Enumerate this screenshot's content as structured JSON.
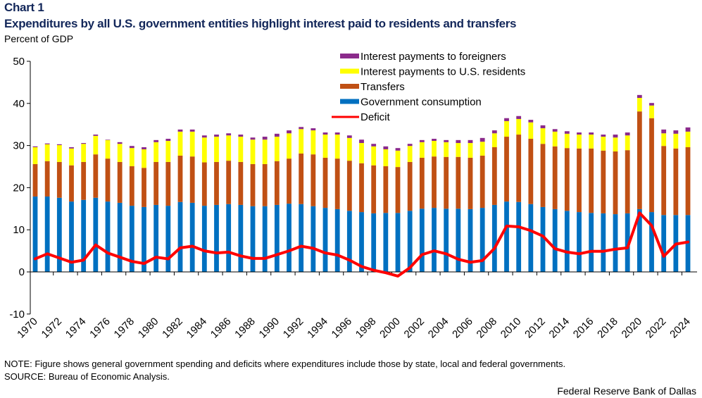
{
  "header": {
    "chart_label": "Chart 1",
    "title": "Expenditures by all U.S. government entities highlight interest paid to residents and transfers",
    "unit": "Percent of GDP"
  },
  "footer": {
    "note": "NOTE: Figure shows general government spending and deficits where expenditures include those by state, local and federal governments.",
    "source": "SOURCE: Bureau of Economic Analysis.",
    "credit": "Federal Reserve Bank of Dallas"
  },
  "colors": {
    "foreigners": "#8b2a8b",
    "residents": "#ffff00",
    "transfers": "#c05014",
    "consumption": "#0070c0",
    "deficit": "#ff0000"
  },
  "chart_data": {
    "type": "bar",
    "stacked": true,
    "title": "Expenditures by all U.S. government entities highlight interest paid to residents and transfers",
    "xlabel": "",
    "ylabel": "Percent of GDP",
    "ylim": [
      -10,
      50
    ],
    "yticks": [
      -10,
      0,
      10,
      20,
      30,
      40,
      50
    ],
    "grid": false,
    "legend_position": "top-center",
    "x": [
      1970,
      1971,
      1972,
      1973,
      1974,
      1975,
      1976,
      1977,
      1978,
      1979,
      1980,
      1981,
      1982,
      1983,
      1984,
      1985,
      1986,
      1987,
      1988,
      1989,
      1990,
      1991,
      1992,
      1993,
      1994,
      1995,
      1996,
      1997,
      1998,
      1999,
      2000,
      2001,
      2002,
      2003,
      2004,
      2005,
      2006,
      2007,
      2008,
      2009,
      2010,
      2011,
      2012,
      2013,
      2014,
      2015,
      2016,
      2017,
      2018,
      2019,
      2020,
      2021,
      2022,
      2023,
      2024
    ],
    "xtick_labels": [
      "1970",
      "1972",
      "1974",
      "1976",
      "1978",
      "1980",
      "1982",
      "1984",
      "1986",
      "1988",
      "1990",
      "1992",
      "1994",
      "1996",
      "1998",
      "2000",
      "2002",
      "2004",
      "2006",
      "2008",
      "2010",
      "2012",
      "2014",
      "2016",
      "2018",
      "2020",
      "2022",
      "2024"
    ],
    "series": [
      {
        "name": "Government consumption",
        "key": "consumption",
        "kind": "bar",
        "values": [
          17.9,
          17.9,
          17.6,
          16.7,
          17.1,
          17.6,
          16.7,
          16.4,
          15.7,
          15.4,
          15.9,
          15.7,
          16.6,
          16.4,
          15.7,
          15.9,
          16.1,
          15.9,
          15.6,
          15.6,
          15.9,
          16.2,
          16.1,
          15.6,
          15.2,
          14.9,
          14.5,
          14.2,
          13.9,
          14.0,
          14.0,
          14.5,
          15.0,
          15.2,
          15.0,
          15.0,
          14.9,
          15.2,
          15.9,
          16.7,
          16.6,
          16.1,
          15.4,
          14.9,
          14.5,
          14.2,
          14.0,
          13.9,
          13.7,
          13.9,
          14.9,
          14.2,
          13.5,
          13.5,
          13.5
        ]
      },
      {
        "name": "Transfers",
        "key": "transfers",
        "kind": "bar",
        "values": [
          7.7,
          8.4,
          8.5,
          8.6,
          9.0,
          10.3,
          10.2,
          9.7,
          9.4,
          9.3,
          10.2,
          10.4,
          11.0,
          11.0,
          10.3,
          10.2,
          10.3,
          10.2,
          10.0,
          10.0,
          10.4,
          10.7,
          12.0,
          12.3,
          11.9,
          12.0,
          11.9,
          11.6,
          11.4,
          11.1,
          10.9,
          11.6,
          12.1,
          12.2,
          12.3,
          12.3,
          12.2,
          12.4,
          13.7,
          15.4,
          16.0,
          15.5,
          15.0,
          14.9,
          14.9,
          15.1,
          15.3,
          14.9,
          14.9,
          15.0,
          23.2,
          22.3,
          16.4,
          15.8,
          16.1
        ]
      },
      {
        "name": "Interest payments to U.S. residents",
        "key": "residents",
        "kind": "bar",
        "values": [
          4.0,
          4.0,
          4.0,
          4.0,
          4.3,
          4.4,
          4.4,
          4.3,
          4.3,
          4.4,
          4.7,
          5.0,
          5.7,
          5.9,
          5.9,
          6.0,
          6.0,
          6.0,
          5.8,
          5.8,
          5.8,
          6.0,
          5.8,
          5.7,
          5.5,
          5.7,
          5.4,
          4.8,
          4.5,
          4.0,
          3.9,
          3.8,
          3.7,
          3.7,
          3.5,
          3.3,
          3.5,
          3.3,
          3.3,
          3.7,
          3.7,
          3.9,
          3.7,
          3.5,
          3.4,
          3.3,
          3.3,
          3.3,
          3.3,
          3.5,
          3.2,
          3.0,
          3.0,
          3.5,
          3.7
        ]
      },
      {
        "name": "Interest payments to foreigners",
        "key": "foreigners",
        "kind": "bar",
        "values": [
          0.2,
          0.2,
          0.2,
          0.3,
          0.2,
          0.3,
          0.1,
          0.4,
          0.5,
          0.5,
          0.5,
          0.5,
          0.5,
          0.5,
          0.5,
          0.5,
          0.5,
          0.5,
          0.5,
          0.7,
          0.7,
          0.7,
          0.5,
          0.5,
          0.5,
          0.5,
          0.6,
          0.8,
          0.6,
          0.7,
          0.6,
          0.5,
          0.5,
          0.5,
          0.5,
          0.7,
          0.7,
          0.9,
          0.7,
          0.7,
          0.7,
          0.6,
          0.7,
          0.6,
          0.6,
          0.5,
          0.5,
          0.5,
          0.7,
          0.7,
          0.7,
          0.6,
          0.9,
          0.8,
          1.0
        ]
      },
      {
        "name": "Deficit",
        "key": "deficit",
        "kind": "line",
        "values": [
          3.1,
          4.3,
          3.3,
          2.3,
          2.8,
          6.4,
          4.5,
          3.5,
          2.5,
          2.0,
          3.5,
          3.1,
          5.7,
          6.1,
          5.0,
          4.5,
          4.7,
          3.8,
          3.2,
          3.2,
          4.1,
          5.0,
          6.1,
          5.6,
          4.5,
          4.0,
          2.8,
          1.3,
          0.4,
          -0.2,
          -1.0,
          1.0,
          4.1,
          5.0,
          4.3,
          3.0,
          2.3,
          2.7,
          5.6,
          10.9,
          10.7,
          9.8,
          8.5,
          5.5,
          4.7,
          4.3,
          4.9,
          4.9,
          5.4,
          5.7,
          14.0,
          11.0,
          3.7,
          6.6,
          7.1
        ]
      }
    ],
    "legend": [
      {
        "label": "Interest payments to foreigners",
        "key": "foreigners",
        "marker": "box"
      },
      {
        "label": "Interest payments to U.S. residents",
        "key": "residents",
        "marker": "box"
      },
      {
        "label": "Transfers",
        "key": "transfers",
        "marker": "box"
      },
      {
        "label": "Government consumption",
        "key": "consumption",
        "marker": "box"
      },
      {
        "label": "Deficit",
        "key": "deficit",
        "marker": "line"
      }
    ]
  }
}
